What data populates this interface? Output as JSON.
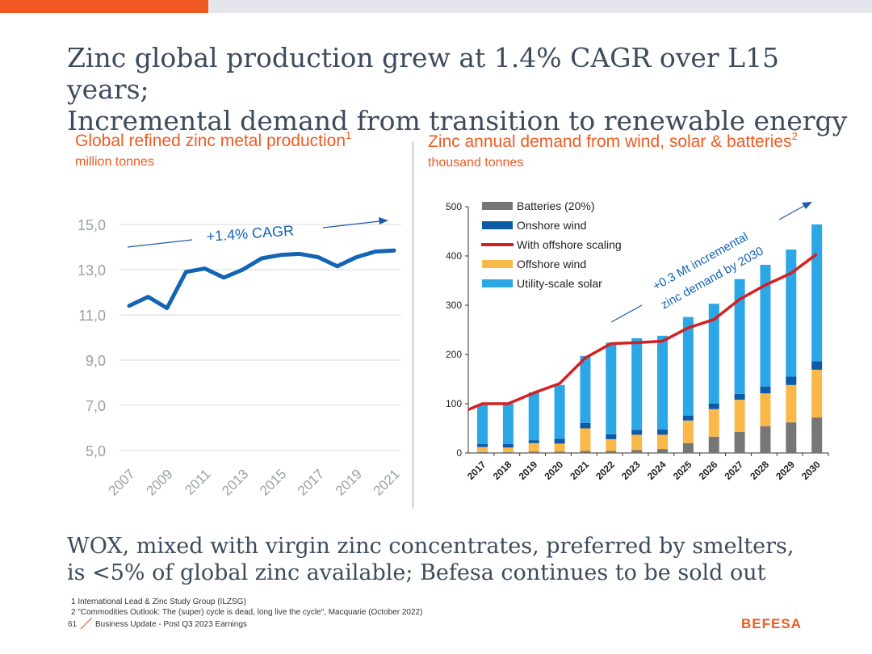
{
  "slide": {
    "title_line1": "Zinc global production grew at 1.4% CAGR over L15 years;",
    "title_line2": "Incremental demand from transition to renewable energy",
    "bottom_line1": "WOX, mixed with virgin zinc concentrates, preferred by smelters,",
    "bottom_line2": "is <5% of global zinc available; Befesa continues to be sold out",
    "footnote1": "1  International Lead & Zinc Study Group (ILZSG)",
    "footnote2": "2  \"Commodities Outlook: The (super) cycle is dead, long live the cycle\", Macquarie (October 2022)",
    "page_number": "61",
    "footer_text": "Business Update - Post Q3 2023 Earnings",
    "logo": "BEFESA",
    "accent_color": "#f05a22"
  },
  "chart_data": [
    {
      "type": "line",
      "title": "Global refined zinc metal production",
      "title_sup": "1",
      "subtitle": "million tonnes",
      "x": [
        "2007",
        "2008",
        "2009",
        "2010",
        "2011",
        "2012",
        "2013",
        "2014",
        "2015",
        "2016",
        "2017",
        "2018",
        "2019",
        "2020",
        "2021"
      ],
      "x_tick_labels": [
        "2007",
        "2009",
        "2011",
        "2013",
        "2015",
        "2017",
        "2019",
        "2021"
      ],
      "values": [
        11.4,
        11.8,
        11.3,
        12.9,
        13.05,
        12.65,
        13.0,
        13.5,
        13.65,
        13.7,
        13.55,
        13.15,
        13.55,
        13.8,
        13.85
      ],
      "ylim": [
        5,
        15
      ],
      "y_ticks": [
        "15,0",
        "13,0",
        "11,0",
        "9,0",
        "7,0",
        "5,0"
      ],
      "y_tick_values": [
        15,
        13,
        11,
        9,
        7,
        5
      ],
      "annotation": "+1.4% CAGR",
      "line_color": "#1464b4",
      "grid": true
    },
    {
      "type": "bar",
      "title": "Zinc annual demand from wind, solar & batteries",
      "title_sup": "2",
      "subtitle": "thousand tonnes",
      "categories": [
        "2017",
        "2018",
        "2019",
        "2020",
        "2021",
        "2022",
        "2023",
        "2024",
        "2025",
        "2026",
        "2027",
        "2028",
        "2029",
        "2030"
      ],
      "ylim": [
        0,
        500
      ],
      "y_ticks": [
        "500",
        "400",
        "300",
        "200",
        "100",
        "0"
      ],
      "y_tick_values": [
        500,
        400,
        300,
        200,
        100,
        0
      ],
      "series": [
        {
          "name": "Batteries (20%)",
          "color": "#767676",
          "values": [
            2,
            2,
            3,
            3,
            4,
            4,
            6,
            8,
            20,
            33,
            43,
            54,
            62,
            72
          ]
        },
        {
          "name": "Offshore wind",
          "color": "#f9b848",
          "values": [
            10,
            9,
            17,
            16,
            46,
            24,
            31,
            29,
            46,
            56,
            65,
            67,
            76,
            97
          ]
        },
        {
          "name": "Onshore wind",
          "color": "#0d5aa7",
          "values": [
            6,
            7,
            6,
            10,
            11,
            10,
            10,
            11,
            10,
            11,
            12,
            14,
            17,
            17
          ]
        },
        {
          "name": "Utility-scale solar",
          "color": "#2ba6e6",
          "values": [
            80,
            82,
            97,
            109,
            136,
            186,
            186,
            190,
            200,
            203,
            233,
            247,
            258,
            278
          ]
        }
      ],
      "line_series": {
        "name": "With offshore scaling",
        "color": "#d42020",
        "values": [
          100,
          100,
          122,
          141,
          193,
          222,
          224,
          227,
          254,
          271,
          312,
          341,
          365,
          404
        ]
      },
      "legend_order": [
        "Batteries (20%)",
        "Onshore wind",
        "With offshore scaling",
        "Offshore wind",
        "Utility-scale solar"
      ],
      "legend_position": "top-left",
      "annotation_line1": "+0.3 Mt incremental",
      "annotation_line2": "zinc demand by 2030"
    }
  ]
}
